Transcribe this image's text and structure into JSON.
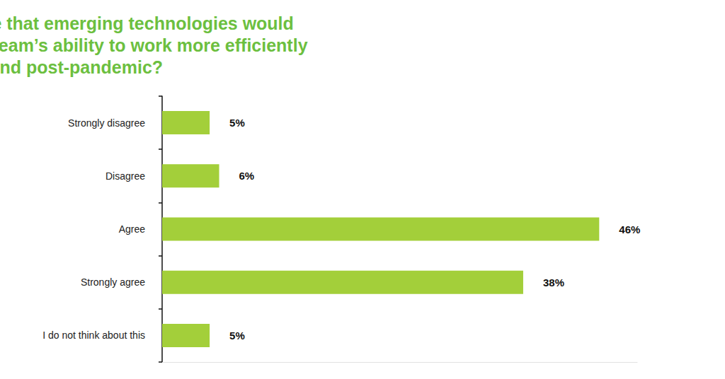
{
  "chart_data": {
    "type": "bar",
    "orientation": "horizontal",
    "title": "Do you agree or disagree that emerging technologies would improve you and/or your team’s ability to work more efficiently during and post-pandemic?",
    "categories": [
      "Strongly disagree",
      "Disagree",
      "Agree",
      "Strongly agree",
      "I do not think about this"
    ],
    "values": [
      5,
      6,
      46,
      38,
      5
    ],
    "value_labels": [
      "5%",
      "6%",
      "46%",
      "38%",
      "5%"
    ],
    "data_labels": true,
    "color": "#a3cf3a",
    "xlim": [
      0,
      50
    ],
    "grid": false,
    "tick_labels": "y"
  }
}
